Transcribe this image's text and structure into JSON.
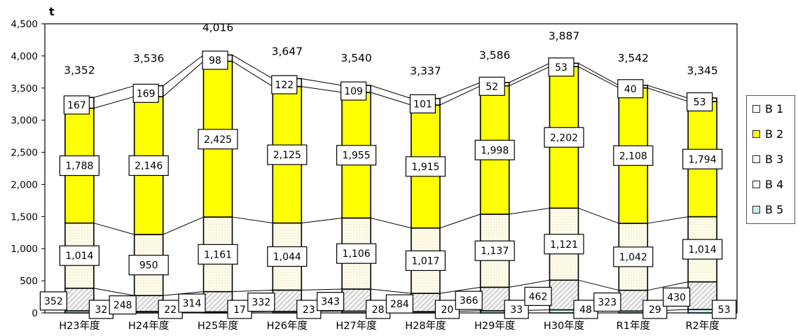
{
  "chart_data": {
    "type": "bar",
    "stacked": true,
    "unit": "t",
    "ylim": [
      0,
      4500
    ],
    "yticks": [
      0,
      500,
      1000,
      1500,
      2000,
      2500,
      3000,
      3500,
      4000,
      4500
    ],
    "ytick_labels": [
      "0",
      "500",
      "1,000",
      "1,500",
      "2,000",
      "2,500",
      "3,000",
      "3,500",
      "4,000",
      "4,500"
    ],
    "categories": [
      "H23年度",
      "H24年度",
      "H25年度",
      "H26年度",
      "H27年度",
      "H28年度",
      "H29年度",
      "H30年度",
      "R1年度",
      "R2年度"
    ],
    "series": [
      {
        "name": "B 5",
        "values": [
          32,
          22,
          17,
          23,
          28,
          20,
          33,
          48,
          29,
          53
        ],
        "labels": [
          "32",
          "22",
          "17",
          "23",
          "28",
          "20",
          "33",
          "48",
          "29",
          "53"
        ],
        "color": "#c9f1f1"
      },
      {
        "name": "B 4",
        "values": [
          352,
          248,
          314,
          332,
          343,
          284,
          366,
          462,
          323,
          430
        ],
        "labels": [
          "352",
          "248",
          "314",
          "332",
          "343",
          "284",
          "366",
          "462",
          "323",
          "430"
        ],
        "color": "#e6e6e6"
      },
      {
        "name": "B 3",
        "values": [
          1014,
          950,
          1161,
          1044,
          1106,
          1017,
          1137,
          1121,
          1042,
          1014
        ],
        "labels": [
          "1,014",
          "950",
          "1,161",
          "1,044",
          "1,106",
          "1,017",
          "1,137",
          "1,121",
          "1,042",
          "1,014"
        ],
        "color": "#fdfbe8"
      },
      {
        "name": "B 2",
        "values": [
          1788,
          2146,
          2425,
          2125,
          1955,
          1915,
          1998,
          2202,
          2108,
          1794
        ],
        "labels": [
          "1,788",
          "2,146",
          "2,425",
          "2,125",
          "1,955",
          "1,915",
          "1,998",
          "2,202",
          "2,108",
          "1,794"
        ],
        "color": "#ffff00"
      },
      {
        "name": "B 1",
        "values": [
          167,
          169,
          98,
          122,
          109,
          101,
          52,
          53,
          40,
          53
        ],
        "labels": [
          "167",
          "169",
          "98",
          "122",
          "109",
          "101",
          "52",
          "53",
          "40",
          "53"
        ],
        "color": "#ffffff"
      }
    ],
    "totals": [
      3352,
      3536,
      4016,
      3647,
      3540,
      3337,
      3586,
      3887,
      3542,
      3345
    ],
    "total_labels": [
      "3,352",
      "3,536",
      "4,016",
      "3,647",
      "3,540",
      "3,337",
      "3,586",
      "3,887",
      "3,542",
      "3,345"
    ],
    "legend": {
      "placement": "right",
      "entries": [
        {
          "name": "B 1",
          "color": "#ffffff"
        },
        {
          "name": "B 2",
          "color": "#ffff00"
        },
        {
          "name": "B 3",
          "color": "#ffffff"
        },
        {
          "name": "B 4",
          "color": "#ffffff"
        },
        {
          "name": "B 5",
          "color": "#c9f1f1"
        }
      ]
    },
    "grid": false
  }
}
